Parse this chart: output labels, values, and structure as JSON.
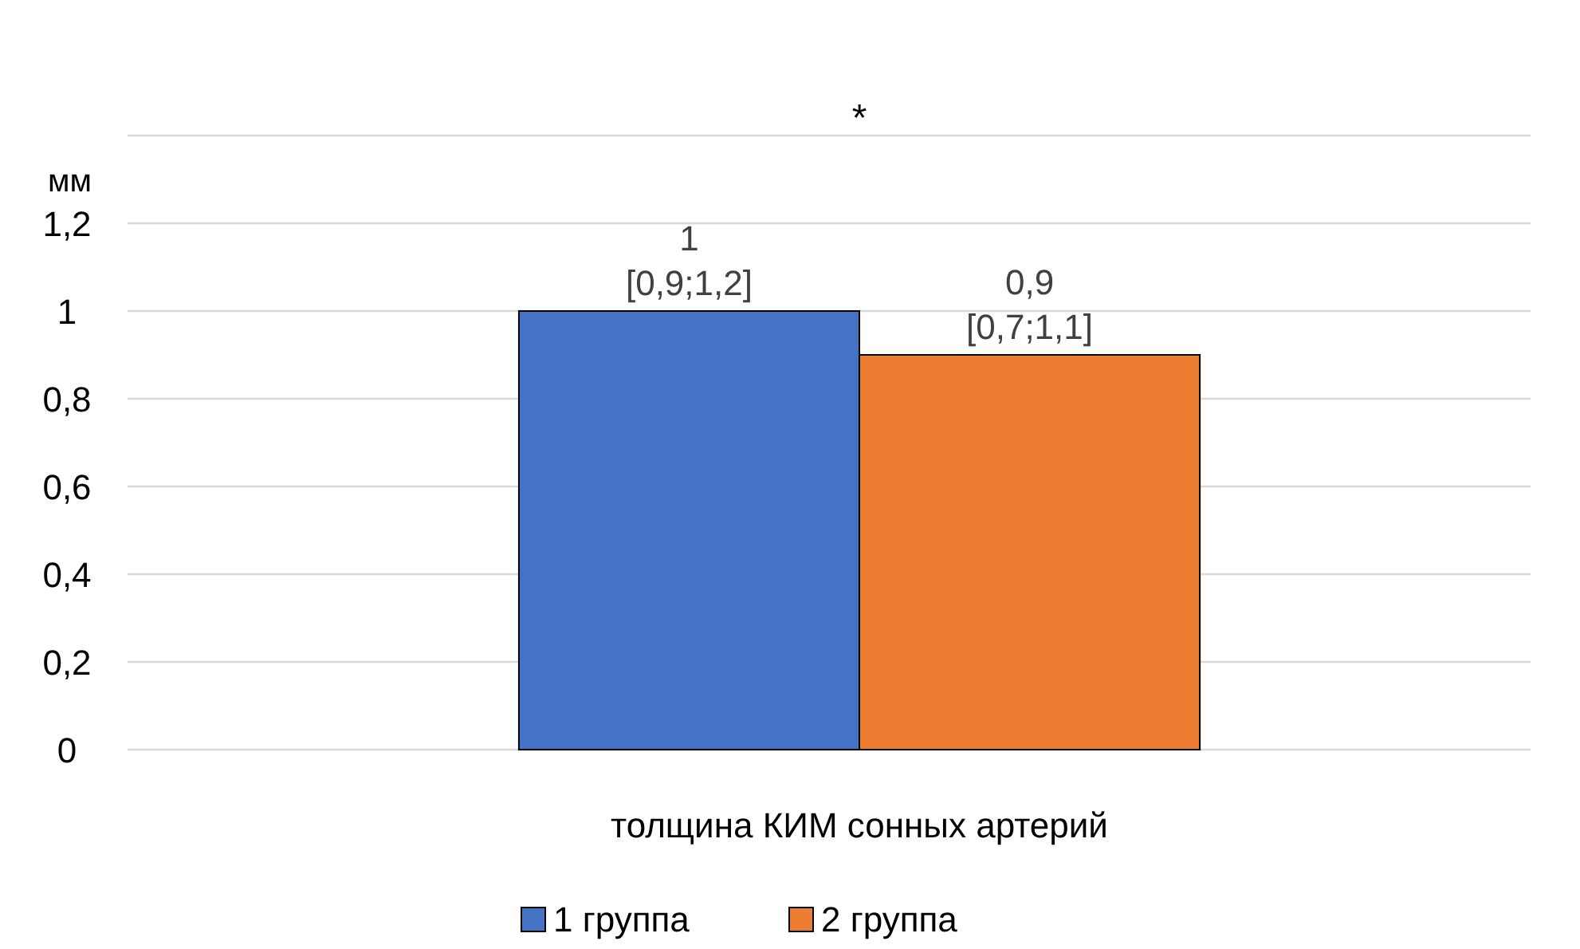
{
  "chart_data": {
    "type": "bar",
    "ylabel": "мм",
    "xlabel": "толщина КИМ сонных артерий",
    "categories": [
      null
    ],
    "series": [
      {
        "name": "1 группа",
        "color": "#4472c4",
        "values": [
          1
        ],
        "value_labels": [
          "1\n[0,9;1,2]"
        ]
      },
      {
        "name": "2 группа",
        "color": "#ed7d31",
        "values": [
          0.9
        ],
        "value_labels": [
          "0,9\n[0,7;1,1]"
        ]
      }
    ],
    "ylim": [
      0,
      1.4
    ],
    "yticks": [
      {
        "value": 0,
        "label": "0"
      },
      {
        "value": 0.2,
        "label": "0,2"
      },
      {
        "value": 0.4,
        "label": "0,4"
      },
      {
        "value": 0.6,
        "label": "0,6"
      },
      {
        "value": 0.8,
        "label": "0,8"
      },
      {
        "value": 1,
        "label": "1"
      },
      {
        "value": 1.2,
        "label": "1,2"
      },
      {
        "value": 1.4,
        "label": null
      }
    ],
    "grid": "y",
    "legend": "bottom",
    "annotations": [
      "*"
    ]
  }
}
